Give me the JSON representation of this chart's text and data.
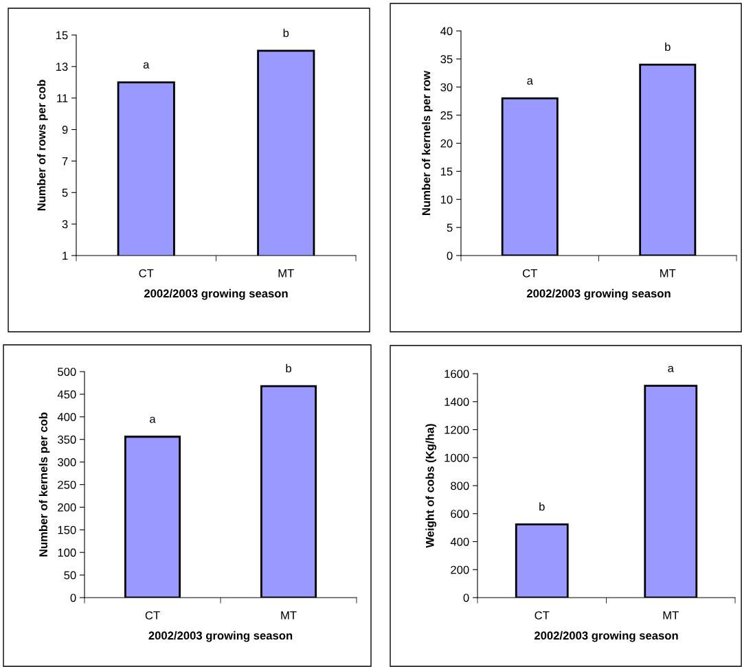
{
  "chart_data": [
    {
      "type": "bar",
      "categories": [
        "CT",
        "MT"
      ],
      "values": [
        12,
        14
      ],
      "color": "#9999ff",
      "ylabel": "Number of rows per cob",
      "xlabel": "2002/2003 growing season",
      "ylim": [
        1,
        15
      ],
      "yticks": [
        1,
        3,
        5,
        7,
        9,
        11,
        13,
        15
      ],
      "grid": false,
      "legend": false,
      "annotations": [
        {
          "text": "a",
          "x": "CT",
          "y": 12
        },
        {
          "text": "b",
          "x": "MT",
          "y": 14
        }
      ]
    },
    {
      "type": "bar",
      "categories": [
        "CT",
        "MT"
      ],
      "values": [
        28,
        34
      ],
      "color": "#9999ff",
      "ylabel": "Number of kernels per row",
      "xlabel": "2002/2003 growing season",
      "ylim": [
        0,
        40
      ],
      "yticks": [
        0,
        5,
        10,
        15,
        20,
        25,
        30,
        35,
        40
      ],
      "grid": false,
      "legend": false,
      "annotations": [
        {
          "text": "a",
          "x": "CT",
          "y": 28
        },
        {
          "text": "b",
          "x": "MT",
          "y": 34
        }
      ]
    },
    {
      "type": "bar",
      "categories": [
        "CT",
        "MT"
      ],
      "values": [
        356,
        468
      ],
      "color": "#9999ff",
      "ylabel": "Number of kernels per cob",
      "xlabel": "2002/2003 growing season",
      "ylim": [
        0,
        500
      ],
      "yticks": [
        0,
        50,
        100,
        150,
        200,
        250,
        300,
        350,
        400,
        450,
        500
      ],
      "grid": false,
      "legend": false,
      "annotations": [
        {
          "text": "a",
          "x": "CT",
          "y": 356
        },
        {
          "text": "b",
          "x": "MT",
          "y": 468
        }
      ]
    },
    {
      "type": "bar",
      "categories": [
        "CT",
        "MT"
      ],
      "values": [
        523,
        1513
      ],
      "color": "#9999ff",
      "ylabel": "Weight of cobs (Kg/ha)",
      "xlabel": "2002/2003 growing season",
      "ylim": [
        0,
        1600
      ],
      "yticks": [
        0,
        200,
        400,
        600,
        800,
        1000,
        1200,
        1400,
        1600
      ],
      "grid": false,
      "legend": false,
      "annotations": [
        {
          "text": "b",
          "x": "CT",
          "y": 523
        },
        {
          "text": "a",
          "x": "MT",
          "y": 1513
        }
      ]
    }
  ]
}
